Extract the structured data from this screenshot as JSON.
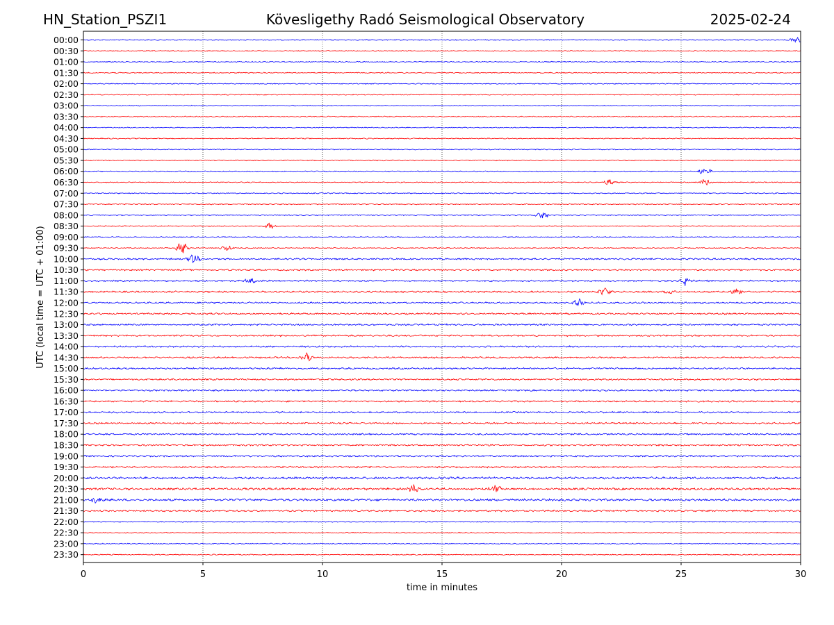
{
  "header": {
    "station": "HN_Station_PSZI1",
    "observatory": "Kövesligethy Radó Seismological Observatory",
    "date": "2025-02-24"
  },
  "colors": {
    "trace_even": "#0000ff",
    "trace_odd": "#ff0000",
    "axes": "#000000",
    "grid": "#000000"
  },
  "chart_data": {
    "type": "line",
    "title": "Kövesligethy Radó Seismological Observatory",
    "xlabel": "time in minutes",
    "ylabel": "UTC (local time = UTC + 01:00)",
    "xlim": [
      0,
      30
    ],
    "xticks": [
      0,
      5,
      10,
      15,
      20,
      25,
      30
    ],
    "xtick_labels": [
      "0",
      "5",
      "10",
      "15",
      "20",
      "25",
      "30"
    ],
    "grid": "vertical dotted lines at 5, 10, 15, 20, 25 minutes",
    "row_labels": [
      "00:00",
      "00:30",
      "01:00",
      "01:30",
      "02:00",
      "02:30",
      "03:00",
      "03:30",
      "04:00",
      "04:30",
      "05:00",
      "05:30",
      "06:00",
      "06:30",
      "07:00",
      "07:30",
      "08:00",
      "08:30",
      "09:00",
      "09:30",
      "10:00",
      "10:30",
      "11:00",
      "11:30",
      "12:00",
      "12:30",
      "13:00",
      "13:30",
      "14:00",
      "14:30",
      "15:00",
      "15:30",
      "16:00",
      "16:30",
      "17:00",
      "17:30",
      "18:00",
      "18:30",
      "19:00",
      "19:30",
      "20:00",
      "20:30",
      "21:00",
      "21:30",
      "22:00",
      "22:30",
      "23:00",
      "23:30"
    ],
    "series_colors": [
      "blue",
      "red"
    ],
    "events": [
      {
        "row": "00:00",
        "minute": 29.8,
        "amplitude": 3
      },
      {
        "row": "06:00",
        "minute": 26.0,
        "amplitude": 4
      },
      {
        "row": "06:30",
        "minute": 22.0,
        "amplitude": 3
      },
      {
        "row": "06:30",
        "minute": 26.0,
        "amplitude": 4
      },
      {
        "row": "08:00",
        "minute": 19.2,
        "amplitude": 4
      },
      {
        "row": "08:30",
        "minute": 7.8,
        "amplitude": 3
      },
      {
        "row": "09:30",
        "minute": 4.15,
        "amplitude": 7
      },
      {
        "row": "09:30",
        "minute": 6.0,
        "amplitude": 3
      },
      {
        "row": "10:00",
        "minute": 4.6,
        "amplitude": 5
      },
      {
        "row": "11:00",
        "minute": 7.0,
        "amplitude": 3
      },
      {
        "row": "11:00",
        "minute": 25.2,
        "amplitude": 5
      },
      {
        "row": "11:30",
        "minute": 21.8,
        "amplitude": 4
      },
      {
        "row": "11:30",
        "minute": 24.6,
        "amplitude": 3
      },
      {
        "row": "11:30",
        "minute": 27.3,
        "amplitude": 3
      },
      {
        "row": "12:00",
        "minute": 20.7,
        "amplitude": 5
      },
      {
        "row": "14:30",
        "minute": 9.3,
        "amplitude": 5
      },
      {
        "row": "20:30",
        "minute": 13.8,
        "amplitude": 4
      },
      {
        "row": "20:30",
        "minute": 17.2,
        "amplitude": 4
      },
      {
        "row": "21:00",
        "minute": 0.5,
        "amplitude": 4
      }
    ]
  }
}
